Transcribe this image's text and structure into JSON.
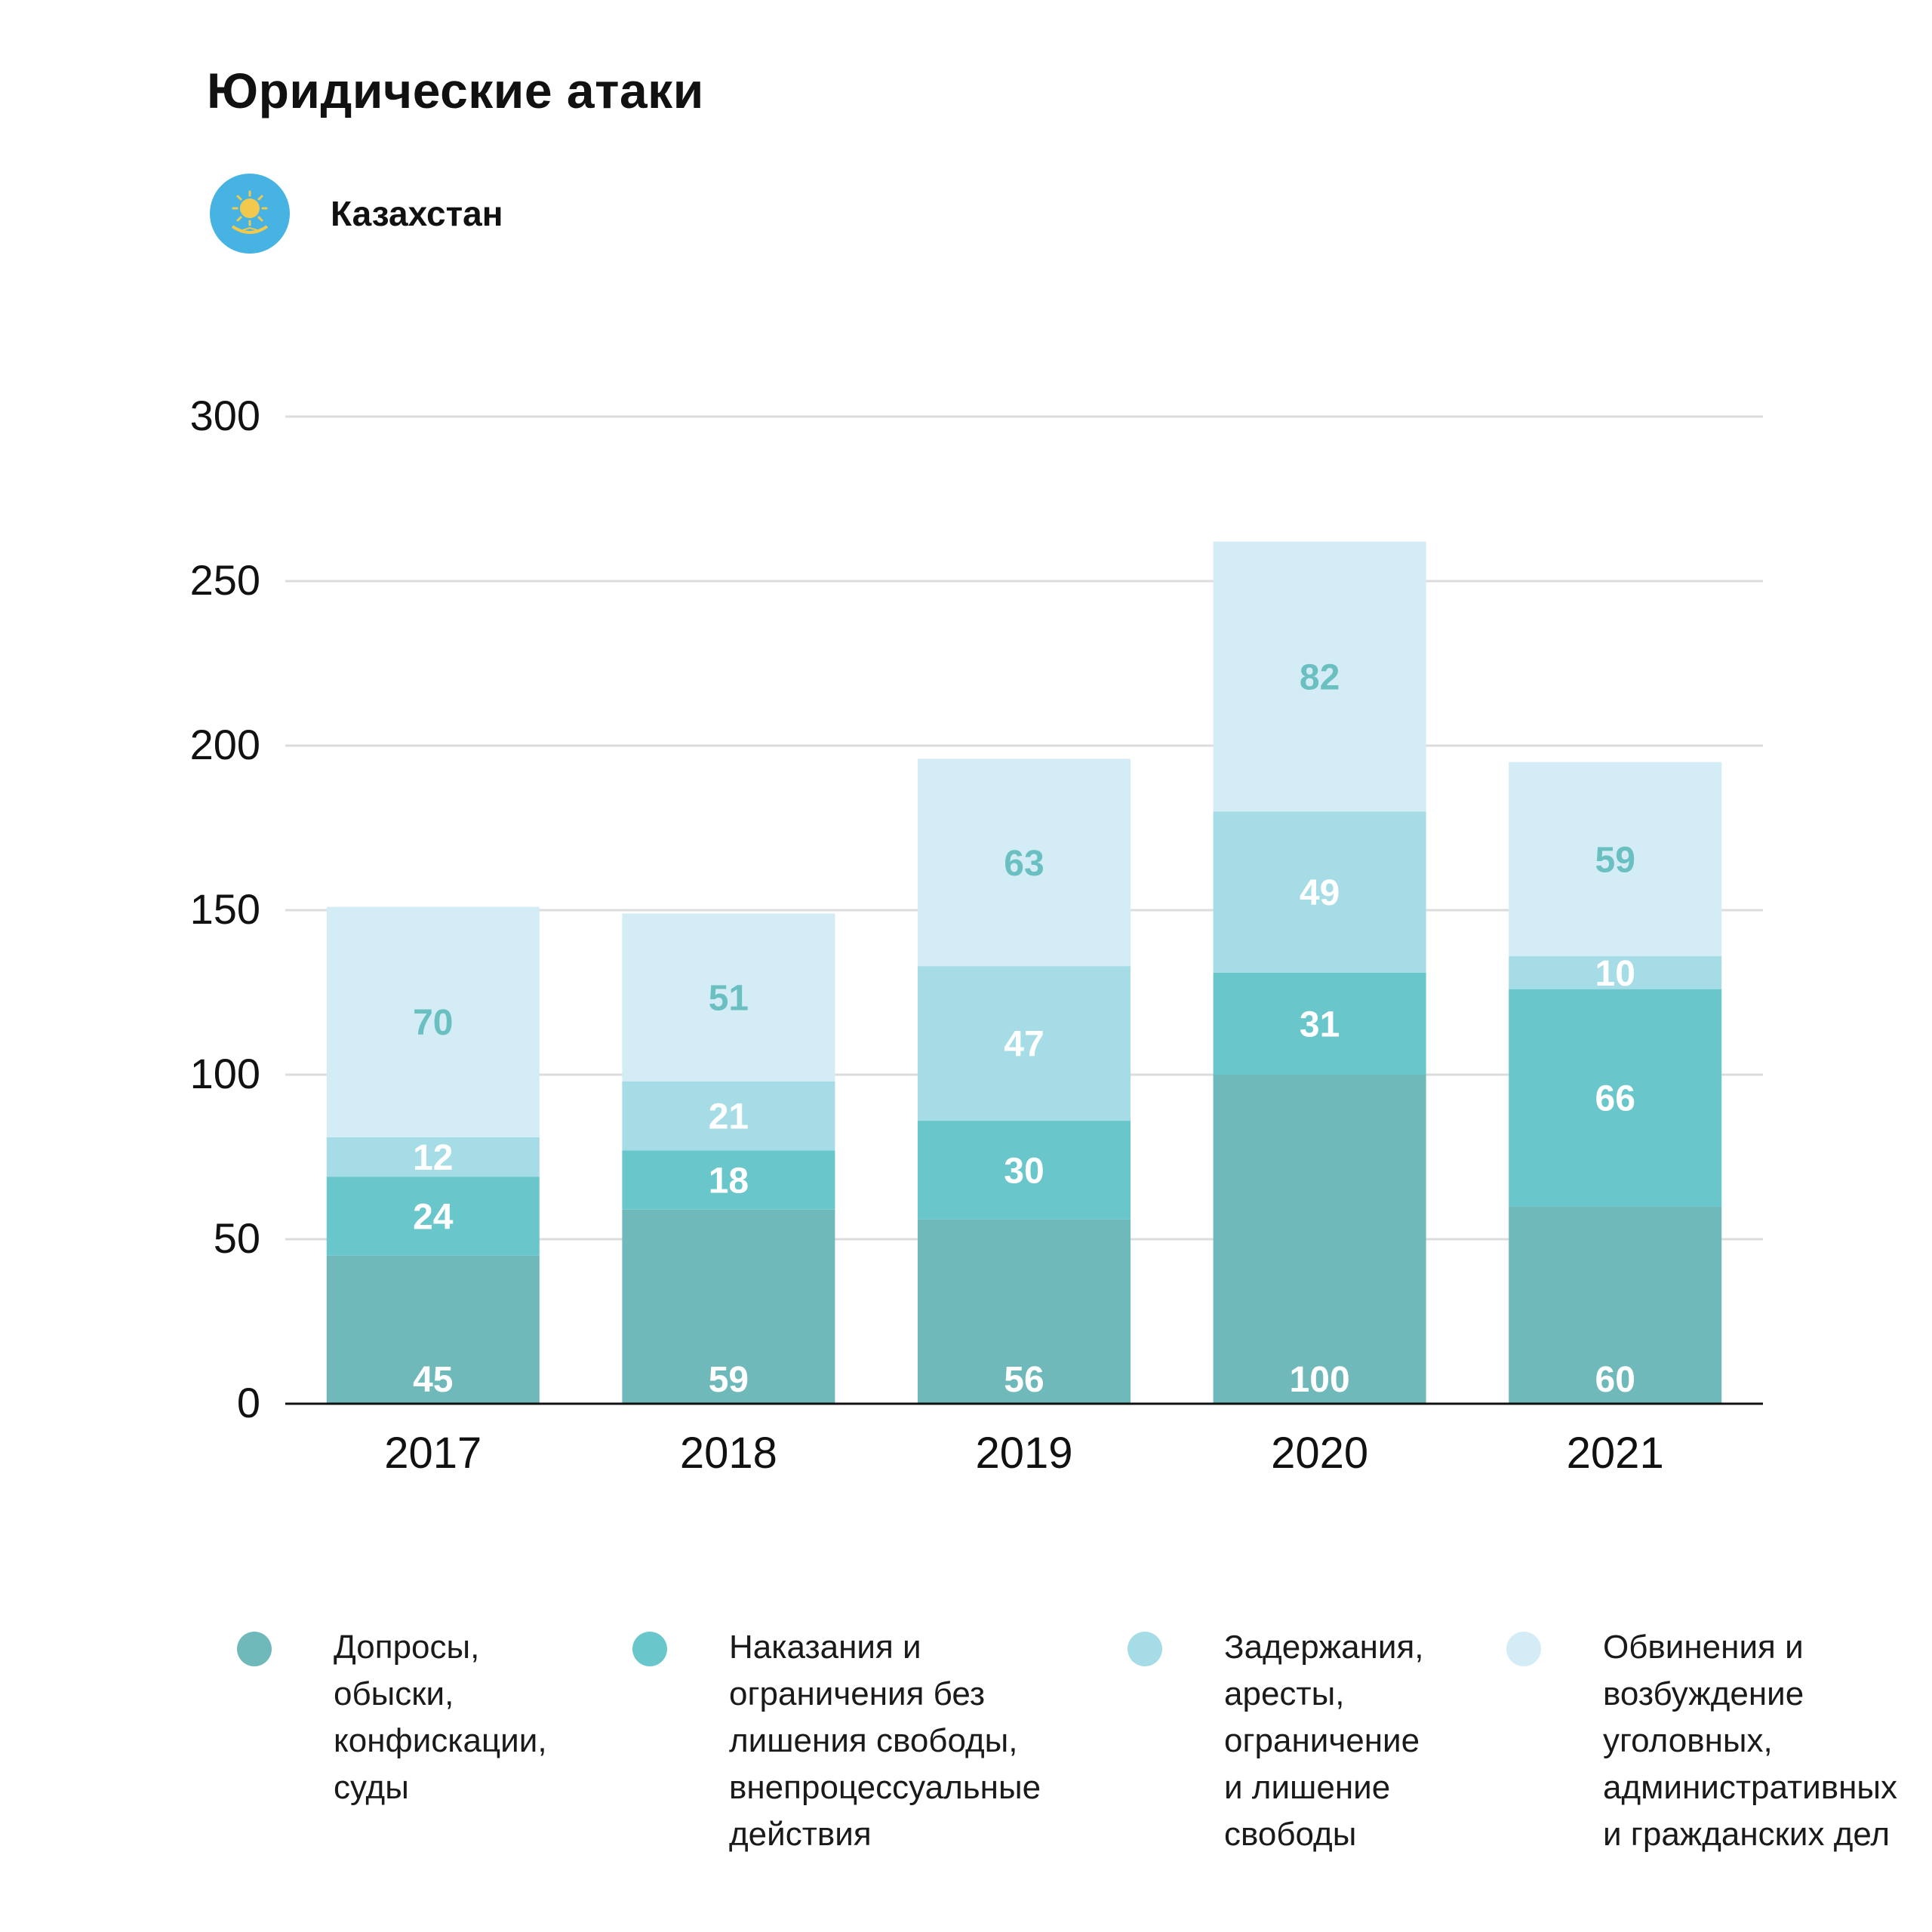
{
  "header": {
    "title": "Юридические атаки",
    "country": "Казахстан",
    "flag_icon": "kazakhstan-flag-icon"
  },
  "chart_data": {
    "type": "bar",
    "stacked": true,
    "categories": [
      "2017",
      "2018",
      "2019",
      "2020",
      "2021"
    ],
    "series": [
      {
        "name": "Допросы,\nобыски,\nконфискации,\nсуды",
        "values": [
          45,
          59,
          56,
          100,
          60
        ],
        "color": "#70b9bb",
        "label_color": "#ffffff"
      },
      {
        "name": "Наказания и\nограничения без\nлишения свободы,\nвнепроцессуальные\nдействия",
        "values": [
          24,
          18,
          30,
          31,
          66
        ],
        "color": "#69c7cc",
        "label_color": "#ffffff"
      },
      {
        "name": "Задержания,\nаресты,\nограничение\nи лишение\nсвободы",
        "values": [
          12,
          21,
          47,
          49,
          10
        ],
        "color": "#a6dce5",
        "label_color": "#ffffff"
      },
      {
        "name": "Обвинения и\nвозбуждение\nуголовных,\nадминистративных\nи гражданских дел",
        "values": [
          70,
          51,
          63,
          82,
          59
        ],
        "color": "#d3ecf5",
        "label_color": "#6abfc0"
      }
    ],
    "ylim": [
      0,
      300
    ],
    "yticks": [
      0,
      50,
      100,
      150,
      200,
      250,
      300
    ],
    "grid": true,
    "legend_position": "bottom"
  }
}
